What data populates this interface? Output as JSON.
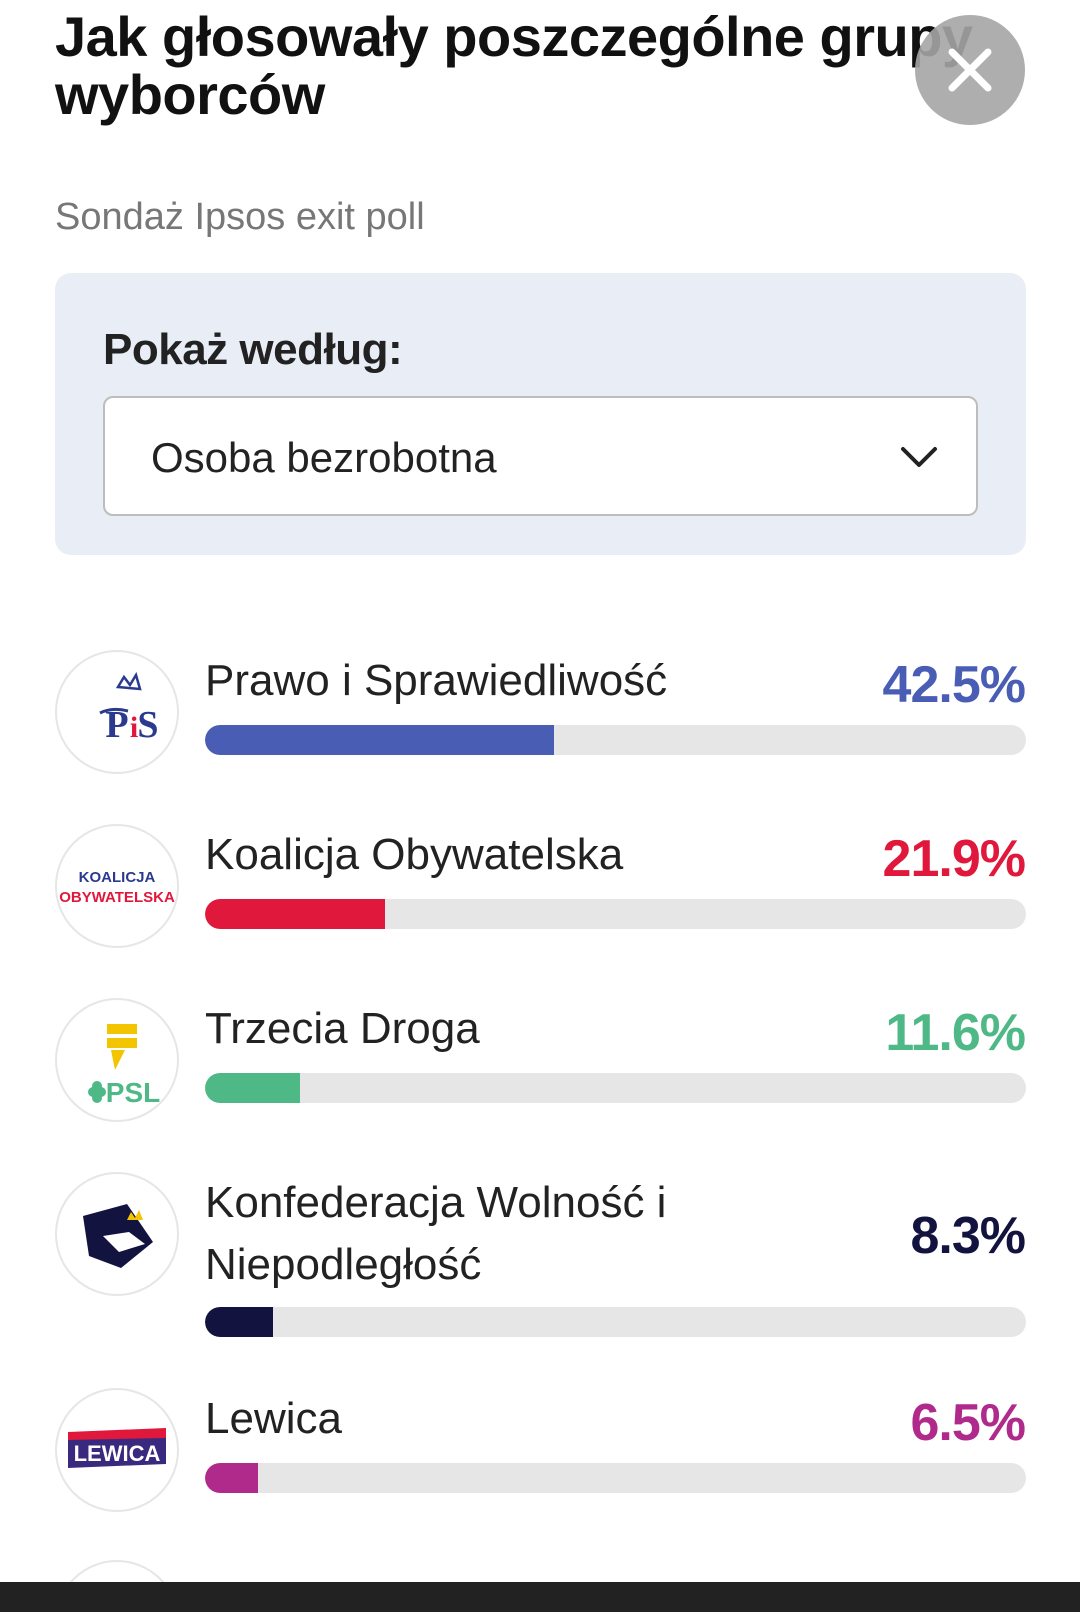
{
  "header": {
    "title": "Jak głosowały poszczególne grupy wyborców",
    "subtitle": "Sondaż Ipsos exit poll"
  },
  "filter": {
    "label": "Pokaż według:",
    "selected": "Osoba bezrobotna"
  },
  "results": [
    {
      "name": "Prawo i Sprawiedliwość",
      "percent_label": "42.5%",
      "percent": 42.5,
      "color": "#4a5db5",
      "logo": "pis-logo"
    },
    {
      "name": "Koalicja Obywatelska",
      "percent_label": "21.9%",
      "percent": 21.9,
      "color": "#e0183c",
      "logo": "ko-logo"
    },
    {
      "name": "Trzecia Droga",
      "percent_label": "11.6%",
      "percent": 11.6,
      "color": "#4fb887",
      "logo": "td-logo"
    },
    {
      "name": "Konfederacja Wolność i Niepodległość",
      "percent_label": "8.3%",
      "percent": 8.3,
      "color": "#13133f",
      "logo": "konfederacja-logo"
    },
    {
      "name": "Lewica",
      "percent_label": "6.5%",
      "percent": 6.5,
      "color": "#b02a8c",
      "logo": "lewica-logo"
    }
  ],
  "logos": {
    "ko_line1": "KOALICJA",
    "ko_line2": "OBYWATELSKA",
    "td_psl": "PSL",
    "lewica": "LEWICA"
  }
}
